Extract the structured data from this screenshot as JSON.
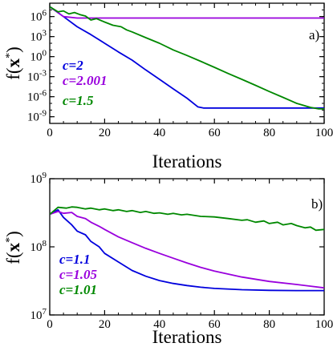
{
  "chart_data": [
    {
      "panel": "a)",
      "type": "line",
      "xlabel": "Iterations",
      "ylabel": "f(x*)",
      "xlim": [
        0,
        100
      ],
      "xticks": [
        0,
        20,
        40,
        60,
        80,
        100
      ],
      "yscale": "log",
      "ylim": [
        1e-10,
        100000000.0
      ],
      "yticks": [
        {
          "v": 1e-09,
          "base": "10",
          "exp": "-9"
        },
        {
          "v": 1e-06,
          "base": "10",
          "exp": "-6"
        },
        {
          "v": 0.001,
          "base": "10",
          "exp": "-3"
        },
        {
          "v": 1.0,
          "base": "10",
          "exp": "0"
        },
        {
          "v": 1000.0,
          "base": "10",
          "exp": "3"
        },
        {
          "v": 1000000.0,
          "base": "10",
          "exp": "6"
        }
      ],
      "series": [
        {
          "name": "c=2",
          "color": "#0000dd",
          "points": [
            [
              0,
              30000000.0
            ],
            [
              5,
              1000000.0
            ],
            [
              10,
              30000.0
            ],
            [
              15,
              2000.0
            ],
            [
              20,
              100.0
            ],
            [
              25,
              5
            ],
            [
              30,
              0.3
            ],
            [
              35,
              0.01
            ],
            [
              40,
              0.0004
            ],
            [
              45,
              1.5e-05
            ],
            [
              50,
              6e-07
            ],
            [
              54,
              3e-08
            ],
            [
              56,
              2e-08
            ],
            [
              60,
              2e-08
            ],
            [
              70,
              2e-08
            ],
            [
              80,
              2e-08
            ],
            [
              90,
              2e-08
            ],
            [
              100,
              2e-08
            ]
          ]
        },
        {
          "name": "c=2.001",
          "color": "#9900dd",
          "points": [
            [
              0,
              30000000.0
            ],
            [
              5,
              1000000.0
            ],
            [
              10,
              600000.0
            ],
            [
              12,
              600000.0
            ],
            [
              20,
              600000.0
            ],
            [
              40,
              600000.0
            ],
            [
              60,
              600000.0
            ],
            [
              80,
              600000.0
            ],
            [
              100,
              600000.0
            ]
          ]
        },
        {
          "name": "c=1.5",
          "color": "#008800",
          "points": [
            [
              0,
              30000000.0
            ],
            [
              3,
              5000000.0
            ],
            [
              5,
              7000000.0
            ],
            [
              7,
              2500000.0
            ],
            [
              9,
              4000000.0
            ],
            [
              11,
              2000000.0
            ],
            [
              13,
              1200000.0
            ],
            [
              15,
              300000.0
            ],
            [
              17,
              500000.0
            ],
            [
              20,
              150000.0
            ],
            [
              23,
              50000.0
            ],
            [
              26,
              30000.0
            ],
            [
              28,
              10000.0
            ],
            [
              30,
              5000.0
            ],
            [
              35,
              700
            ],
            [
              40,
              100
            ],
            [
              45,
              10
            ],
            [
              50,
              1.5
            ],
            [
              55,
              0.2
            ],
            [
              60,
              0.025
            ],
            [
              65,
              0.003
            ],
            [
              70,
              0.0004
            ],
            [
              75,
              5e-05
            ],
            [
              80,
              6e-06
            ],
            [
              85,
              8e-07
            ],
            [
              90,
              1e-07
            ],
            [
              95,
              2.5e-08
            ],
            [
              98,
              1.5e-08
            ],
            [
              100,
              1.5e-08
            ]
          ]
        }
      ],
      "legend": [
        "c=2",
        "c=2.001",
        "c=1.5"
      ]
    },
    {
      "panel": "b)",
      "type": "line",
      "xlabel": "Iterations",
      "ylabel": "f(x*)",
      "xlim": [
        0,
        100
      ],
      "xticks": [
        0,
        20,
        40,
        60,
        80,
        100
      ],
      "yscale": "log",
      "ylim": [
        10000000.0,
        1000000000.0
      ],
      "yticks": [
        {
          "v": 10000000.0,
          "base": "10",
          "exp": "7"
        },
        {
          "v": 100000000.0,
          "base": "10",
          "exp": "8"
        },
        {
          "v": 1000000000.0,
          "base": "10",
          "exp": "9"
        }
      ],
      "series": [
        {
          "name": "c=1.1",
          "color": "#0000dd",
          "points": [
            [
              0,
              300000000.0
            ],
            [
              3,
              350000000.0
            ],
            [
              5,
              270000000.0
            ],
            [
              8,
              210000000.0
            ],
            [
              10,
              170000000.0
            ],
            [
              13,
              150000000.0
            ],
            [
              15,
              120000000.0
            ],
            [
              18,
              100000000.0
            ],
            [
              20,
              80000000.0
            ],
            [
              25,
              60000000.0
            ],
            [
              30,
              45000000.0
            ],
            [
              35,
              37000000.0
            ],
            [
              40,
              32000000.0
            ],
            [
              45,
              29000000.0
            ],
            [
              50,
              27000000.0
            ],
            [
              55,
              25500000.0
            ],
            [
              60,
              24500000.0
            ],
            [
              70,
              23500000.0
            ],
            [
              80,
              23000000.0
            ],
            [
              90,
              22800000.0
            ],
            [
              100,
              22800000.0
            ]
          ]
        },
        {
          "name": "c=1.05",
          "color": "#9900dd",
          "points": [
            [
              0,
              300000000.0
            ],
            [
              3,
              330000000.0
            ],
            [
              5,
              310000000.0
            ],
            [
              8,
              320000000.0
            ],
            [
              10,
              280000000.0
            ],
            [
              13,
              260000000.0
            ],
            [
              15,
              230000000.0
            ],
            [
              18,
              200000000.0
            ],
            [
              20,
              180000000.0
            ],
            [
              25,
              140000000.0
            ],
            [
              30,
              115000000.0
            ],
            [
              35,
              95000000.0
            ],
            [
              40,
              80000000.0
            ],
            [
              45,
              68000000.0
            ],
            [
              50,
              58000000.0
            ],
            [
              55,
              50000000.0
            ],
            [
              60,
              44000000.0
            ],
            [
              70,
              36000000.0
            ],
            [
              80,
              31000000.0
            ],
            [
              90,
              28000000.0
            ],
            [
              100,
              25000000.0
            ]
          ]
        },
        {
          "name": "c=1.01",
          "color": "#008800",
          "points": [
            [
              0,
              300000000.0
            ],
            [
              3,
              380000000.0
            ],
            [
              6,
              370000000.0
            ],
            [
              8,
              385000000.0
            ],
            [
              10,
              380000000.0
            ],
            [
              13,
              360000000.0
            ],
            [
              15,
              370000000.0
            ],
            [
              18,
              350000000.0
            ],
            [
              20,
              360000000.0
            ],
            [
              23,
              340000000.0
            ],
            [
              25,
              350000000.0
            ],
            [
              28,
              330000000.0
            ],
            [
              30,
              340000000.0
            ],
            [
              33,
              320000000.0
            ],
            [
              35,
              330000000.0
            ],
            [
              38,
              310000000.0
            ],
            [
              40,
              315000000.0
            ],
            [
              43,
              300000000.0
            ],
            [
              45,
              310000000.0
            ],
            [
              48,
              295000000.0
            ],
            [
              50,
              300000000.0
            ],
            [
              55,
              280000000.0
            ],
            [
              60,
              275000000.0
            ],
            [
              65,
              260000000.0
            ],
            [
              70,
              245000000.0
            ],
            [
              72,
              250000000.0
            ],
            [
              75,
              230000000.0
            ],
            [
              78,
              240000000.0
            ],
            [
              80,
              220000000.0
            ],
            [
              83,
              230000000.0
            ],
            [
              85,
              210000000.0
            ],
            [
              88,
              220000000.0
            ],
            [
              90,
              205000000.0
            ],
            [
              93,
              190000000.0
            ],
            [
              95,
              195000000.0
            ],
            [
              97,
              175000000.0
            ],
            [
              100,
              180000000.0
            ]
          ]
        }
      ],
      "legend": [
        "c=1.1",
        "c=1.05",
        "c=1.01"
      ]
    }
  ]
}
